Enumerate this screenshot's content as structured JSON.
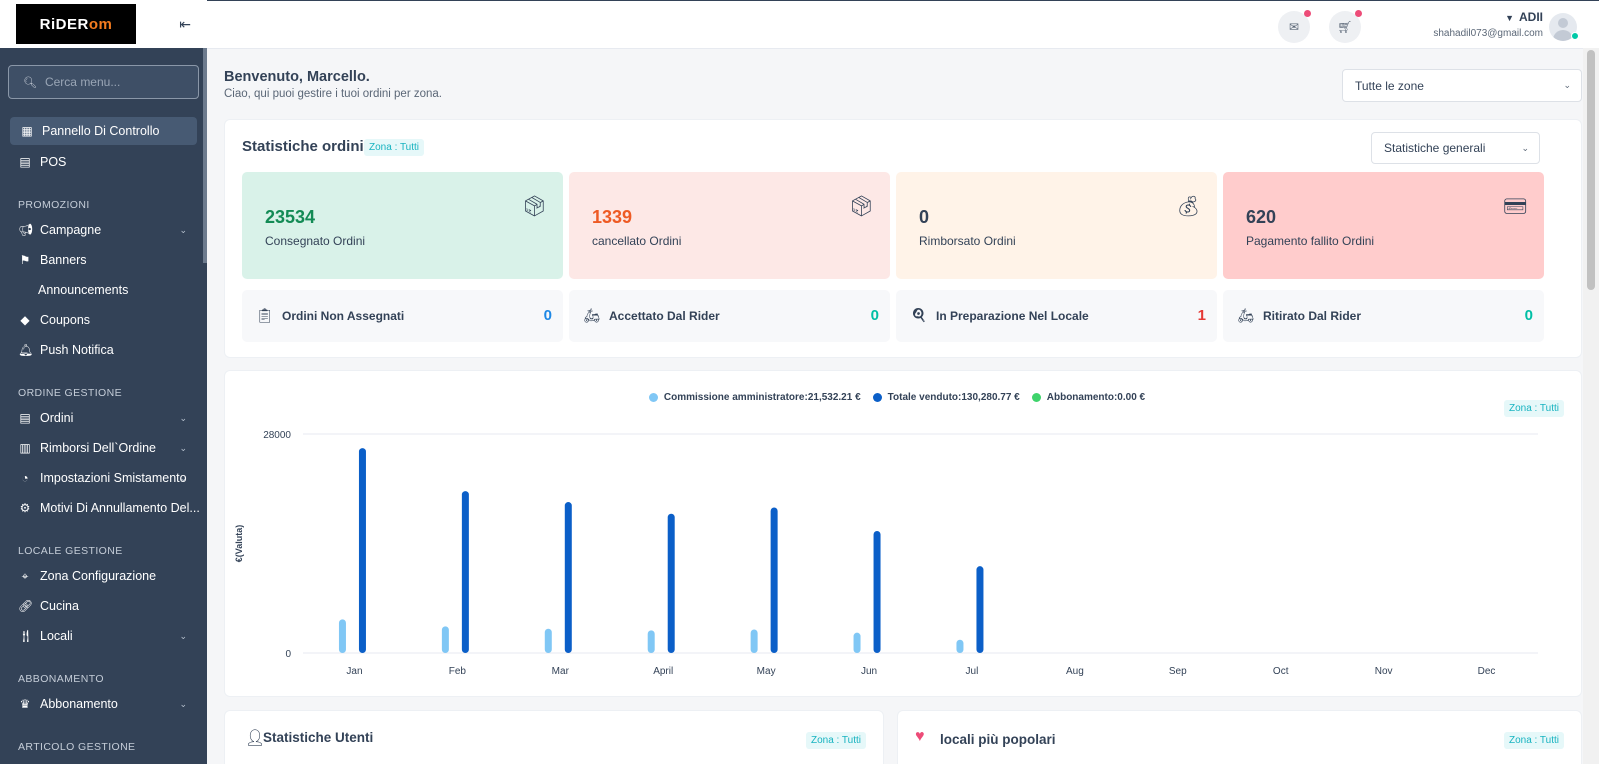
{
  "brand": {
    "logo_text_a": "RiDER",
    "logo_text_b": "om"
  },
  "sidebar": {
    "search_placeholder": "Cerca menu...",
    "items": [
      {
        "label": "Pannello Di Controllo",
        "icon": "dashboard-icon"
      },
      {
        "label": "POS",
        "icon": "pos-icon"
      }
    ],
    "sections": [
      {
        "title": "PROMOZIONI",
        "items": [
          {
            "label": "Campagne",
            "icon": "megaphone-icon",
            "expandable": true
          },
          {
            "label": "Banners",
            "icon": "flag-icon"
          },
          {
            "label": "Announcements",
            "icon": ""
          },
          {
            "label": "Coupons",
            "icon": "tag-icon"
          },
          {
            "label": "Push Notifica",
            "icon": "bell-icon"
          }
        ]
      },
      {
        "title": "ORDINE GESTIONE",
        "items": [
          {
            "label": "Ordini",
            "icon": "orders-icon",
            "expandable": true
          },
          {
            "label": "Rimborsi Dell`Ordine",
            "icon": "receipt-icon",
            "expandable": true
          },
          {
            "label": "Impostazioni Smistamento",
            "icon": "gauge-icon",
            "expandable": true
          },
          {
            "label": "Motivi Di Annullamento Del...",
            "icon": "gear-icon"
          }
        ]
      },
      {
        "title": "LOCALE GESTIONE",
        "items": [
          {
            "label": "Zona Configurazione",
            "icon": "location-icon"
          },
          {
            "label": "Cucina",
            "icon": "link-icon"
          },
          {
            "label": "Locali",
            "icon": "cutlery-icon",
            "expandable": true
          }
        ]
      },
      {
        "title": "ABBONAMENTO",
        "items": [
          {
            "label": "Abbonamento",
            "icon": "crown-icon",
            "expandable": true
          }
        ]
      },
      {
        "title": "ARTICOLO GESTIONE",
        "items": []
      }
    ]
  },
  "header": {
    "user_name": "ADII",
    "user_email": "shahadil073@gmail.com"
  },
  "welcome": {
    "title": "Benvenuto, Marcello.",
    "subtitle": "Ciao, qui puoi gestire i tuoi ordini per zona."
  },
  "zone_select": "Tutte le zone",
  "order_stats": {
    "title": "Statistiche ordini",
    "zone_badge": "Zona : Tutti",
    "filter": "Statistiche generali",
    "boxes": [
      {
        "value": "23534",
        "label": "Consegnato Ordini",
        "bg": "#d9f2e9",
        "color": "#138b55"
      },
      {
        "value": "1339",
        "label": "cancellato Ordini",
        "bg": "#fde8e6",
        "color": "#ee5a24"
      },
      {
        "value": "0",
        "label": "Rimborsato Ordini",
        "bg": "#fff3e8",
        "color": "#334257"
      },
      {
        "value": "620",
        "label": "Pagamento fallito Ordini",
        "bg": "#ffcccc",
        "color": "#334257"
      }
    ],
    "mini": [
      {
        "label": "Ordini Non Assegnati",
        "value": "0",
        "color": "#1e88e5"
      },
      {
        "label": "Accettato Dal Rider",
        "value": "0",
        "color": "#00bfa5"
      },
      {
        "label": "In Preparazione Nel Locale",
        "value": "1",
        "color": "#e53935"
      },
      {
        "label": "Ritirato Dal Rider",
        "value": "0",
        "color": "#00bfa5"
      }
    ]
  },
  "earnings": {
    "zone_badge": "Zona : Tutti",
    "legend": [
      {
        "label": "Commissione amministratore:21,532.21 €",
        "color": "#80c7f5"
      },
      {
        "label": "Totale venduto:130,280.77 €",
        "color": "#0b5fc8"
      },
      {
        "label": "Abbonamento:0.00 €",
        "color": "#3ed36b"
      }
    ]
  },
  "chart_data": {
    "type": "bar",
    "ylabel": "€(Valuta)",
    "ylim": [
      0,
      28000
    ],
    "yticks": [
      "0",
      "28000"
    ],
    "categories": [
      "Jan",
      "Feb",
      "Mar",
      "April",
      "May",
      "Jun",
      "Jul",
      "Aug",
      "Sep",
      "Oct",
      "Nov",
      "Dec"
    ],
    "series": [
      {
        "name": "Commissione amministratore",
        "color": "#80c7f5",
        "values": [
          4300,
          3400,
          3100,
          2900,
          3000,
          2600,
          1700,
          0,
          0,
          0,
          0,
          0
        ]
      },
      {
        "name": "Totale venduto",
        "color": "#0b5fc8",
        "values": [
          26200,
          20700,
          19300,
          17800,
          18600,
          15600,
          11100,
          0,
          0,
          0,
          0,
          0
        ]
      },
      {
        "name": "Abbonamento",
        "color": "#3ed36b",
        "values": [
          0,
          0,
          0,
          0,
          0,
          0,
          0,
          0,
          0,
          0,
          0,
          0
        ]
      }
    ]
  },
  "user_stats": {
    "title": "Statistiche Utenti",
    "zone_badge": "Zona : Tutti"
  },
  "popular": {
    "title": "locali più popolari",
    "zone_badge": "Zona : Tutti"
  }
}
